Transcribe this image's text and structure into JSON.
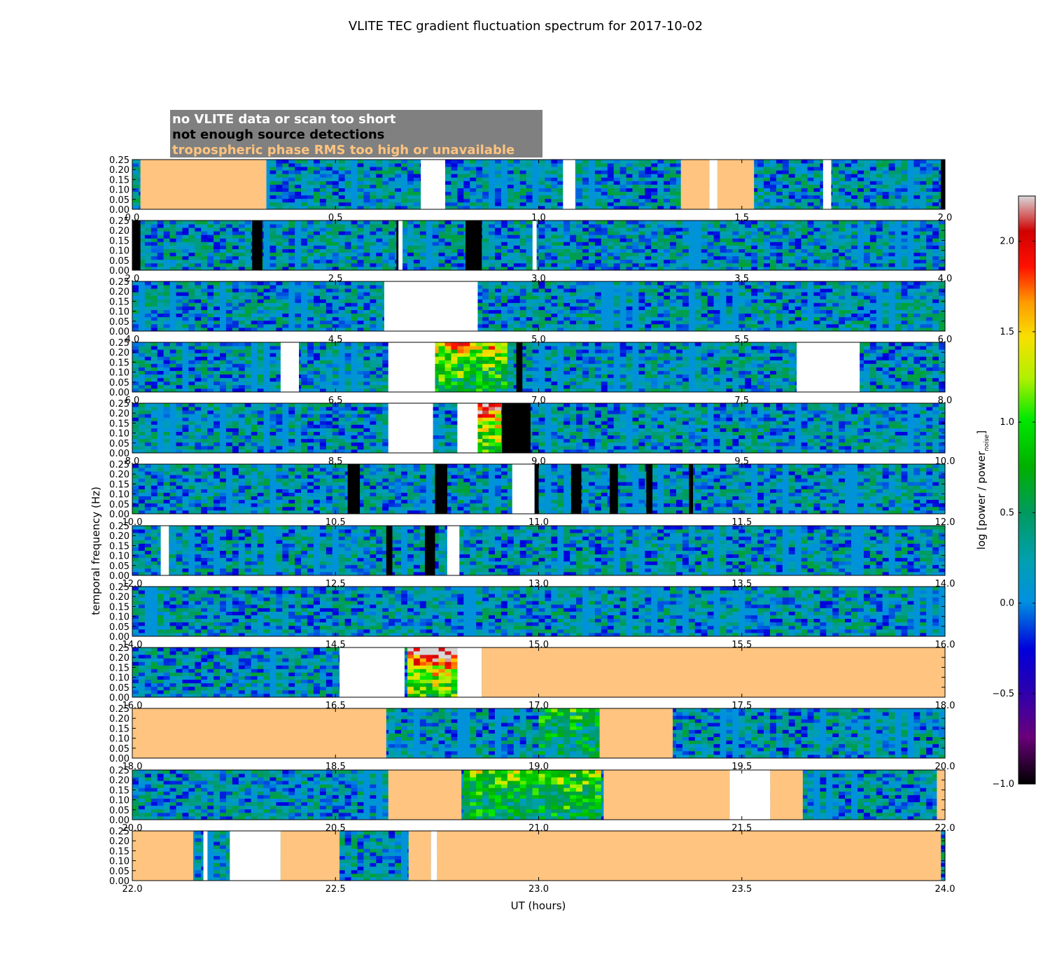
{
  "chart_data": {
    "type": "heatmap",
    "title": "VLITE TEC gradient fluctuation spectrum for 2017-10-02",
    "xlabel": "UT (hours)",
    "ylabel": "temporal frequency (Hz)",
    "ylim": [
      0,
      0.25
    ],
    "y_ticks": [
      "0.00",
      "0.05",
      "0.10",
      "0.15",
      "0.20",
      "0.25"
    ],
    "hours_per_row": 2,
    "colorbar": {
      "label": "log [power / power",
      "label_sub": "noise",
      "label_end": "]",
      "range": [
        -1.0,
        2.25
      ],
      "ticks": [
        "−1.0",
        "−0.5",
        "0.0",
        "0.5",
        "1.0",
        "1.5",
        "2.0"
      ],
      "tick_values": [
        -1.0,
        -0.5,
        0.0,
        0.5,
        1.0,
        1.5,
        2.0
      ]
    },
    "legend": [
      {
        "label": "no VLITE data or scan too short",
        "color": "#ffffff",
        "category": "no_data"
      },
      {
        "label": "not enough source detections",
        "color": "#000000",
        "category": "few_sources"
      },
      {
        "label": "tropospheric phase RMS too high or unavailable",
        "color": "#ffc480",
        "category": "tropo"
      }
    ],
    "rows": [
      {
        "start": 0,
        "ticks": [
          "0.0",
          "0.5",
          "1.0",
          "1.5",
          "2.0"
        ],
        "masks": [
          [
            "tropo",
            0.02,
            0.33
          ],
          [
            "white",
            0.71,
            0.77
          ],
          [
            "white",
            1.06,
            1.09
          ],
          [
            "tropo",
            1.35,
            1.42
          ],
          [
            "white",
            1.42,
            1.44
          ],
          [
            "tropo",
            1.44,
            1.53
          ],
          [
            "white",
            1.7,
            1.72
          ],
          [
            "black",
            1.99,
            2.0
          ]
        ],
        "hot": []
      },
      {
        "start": 2,
        "ticks": [
          "2.0",
          "2.5",
          "3.0",
          "3.5",
          "4.0"
        ],
        "masks": [
          [
            "black",
            2.0,
            2.02
          ],
          [
            "black",
            2.295,
            2.32
          ],
          [
            "black",
            2.65,
            2.655
          ],
          [
            "white",
            2.655,
            2.665
          ],
          [
            "black",
            2.82,
            2.86
          ],
          [
            "white",
            2.985,
            2.995
          ]
        ],
        "hot": []
      },
      {
        "start": 4,
        "ticks": [
          "4.0",
          "4.5",
          "5.0",
          "5.5",
          "6.0"
        ],
        "masks": [
          [
            "white",
            4.62,
            4.85
          ]
        ],
        "hot": []
      },
      {
        "start": 6,
        "ticks": [
          "6.0",
          "6.5",
          "7.0",
          "7.5",
          "8.0"
        ],
        "masks": [
          [
            "white",
            6.365,
            6.41
          ],
          [
            "white",
            6.63,
            6.745
          ],
          [
            "black",
            6.945,
            6.96
          ],
          [
            "white",
            7.635,
            7.79
          ]
        ],
        "hot": [
          [
            6.745,
            6.93,
            0.6
          ]
        ]
      },
      {
        "start": 8,
        "ticks": [
          "8.0",
          "8.5",
          "9.0",
          "9.5",
          "10.0"
        ],
        "masks": [
          [
            "white",
            8.63,
            8.74
          ],
          [
            "white",
            8.8,
            8.85
          ],
          [
            "black",
            8.91,
            8.98
          ]
        ],
        "hot": [
          [
            8.85,
            8.91,
            0.9
          ]
        ]
      },
      {
        "start": 10,
        "ticks": [
          "10.0",
          "10.5",
          "11.0",
          "11.5",
          "12.0"
        ],
        "masks": [
          [
            "black",
            10.53,
            10.56
          ],
          [
            "black",
            10.745,
            10.775
          ],
          [
            "white",
            10.935,
            10.99
          ],
          [
            "black",
            10.99,
            11.0
          ],
          [
            "black",
            11.08,
            11.105
          ],
          [
            "black",
            11.175,
            11.195
          ],
          [
            "black",
            11.265,
            11.28
          ],
          [
            "black",
            11.37,
            11.38
          ]
        ],
        "hot": []
      },
      {
        "start": 12,
        "ticks": [
          "12.0",
          "12.5",
          "13.0",
          "13.5",
          "14.0"
        ],
        "masks": [
          [
            "white",
            12.07,
            12.09
          ],
          [
            "black",
            12.625,
            12.64
          ],
          [
            "black",
            12.72,
            12.745
          ],
          [
            "white",
            12.775,
            12.805
          ]
        ],
        "hot": []
      },
      {
        "start": 14,
        "ticks": [
          "14.0",
          "14.5",
          "15.0",
          "15.5",
          "16.0"
        ],
        "masks": [],
        "hot": []
      },
      {
        "start": 16,
        "ticks": [
          "16.0",
          "16.5",
          "17.0",
          "17.5",
          "18.0"
        ],
        "masks": [
          [
            "white",
            16.51,
            16.67
          ],
          [
            "white",
            16.8,
            16.86
          ],
          [
            "tropo",
            16.86,
            18.0
          ]
        ],
        "hot": [
          [
            16.67,
            16.8,
            1.0
          ]
        ]
      },
      {
        "start": 18,
        "ticks": [
          "18.0",
          "18.5",
          "19.0",
          "19.5",
          "20.0"
        ],
        "masks": [
          [
            "tropo",
            18.0,
            18.625
          ],
          [
            "tropo",
            19.15,
            19.33
          ]
        ],
        "hot": [
          [
            19.0,
            19.15,
            0.2
          ]
        ]
      },
      {
        "start": 20,
        "ticks": [
          "20.0",
          "20.5",
          "21.0",
          "21.5",
          "22.0"
        ],
        "masks": [
          [
            "tropo",
            20.63,
            20.81
          ],
          [
            "tropo",
            21.16,
            21.47
          ],
          [
            "white",
            21.47,
            21.57
          ],
          [
            "tropo",
            21.57,
            21.65
          ],
          [
            "tropo",
            21.98,
            22.0
          ]
        ],
        "hot": [
          [
            20.81,
            21.15,
            0.35
          ]
        ]
      },
      {
        "start": 22,
        "ticks": [
          "22.0",
          "22.5",
          "23.0",
          "23.5",
          "24.0"
        ],
        "masks": [
          [
            "tropo",
            22.0,
            22.15
          ],
          [
            "white",
            22.175,
            22.185
          ],
          [
            "white",
            22.24,
            22.365
          ],
          [
            "tropo",
            22.365,
            22.51
          ],
          [
            "tropo",
            22.68,
            22.735
          ],
          [
            "white",
            22.735,
            22.75
          ],
          [
            "tropo",
            22.75,
            23.99
          ]
        ],
        "hot": []
      }
    ]
  }
}
